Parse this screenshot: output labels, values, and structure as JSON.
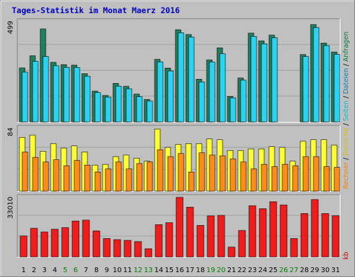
{
  "chart_data": {
    "type": "bar",
    "title": "Tages-Statistik im Monat Maerz 2016",
    "days": [
      "1",
      "2",
      "3",
      "4",
      "5",
      "6",
      "7",
      "8",
      "9",
      "10",
      "11",
      "12",
      "13",
      "14",
      "15",
      "16",
      "17",
      "18",
      "19",
      "20",
      "21",
      "22",
      "23",
      "24",
      "25",
      "26",
      "27",
      "28",
      "29",
      "30",
      "31"
    ],
    "day_colors": [
      "#000000",
      "#000000",
      "#000000",
      "#000000",
      "#008000",
      "#008000",
      "#000000",
      "#000000",
      "#000000",
      "#000000",
      "#000000",
      "#008000",
      "#008000",
      "#000000",
      "#000000",
      "#000000",
      "#000000",
      "#000000",
      "#008000",
      "#008000",
      "#000000",
      "#000000",
      "#000000",
      "#000000",
      "#000000",
      "#008000",
      "#008000",
      "#000000",
      "#000000",
      "#000000",
      "#000000"
    ],
    "panels": [
      {
        "max_label": "499",
        "ymax": 499,
        "series": [
          {
            "name": "Anfragen",
            "color": "#1f7f5f",
            "values": [
              272,
              333,
              468,
              300,
              288,
              286,
              243,
              155,
              133,
              194,
              179,
              140,
              113,
              315,
              271,
              464,
              440,
              215,
              312,
              373,
              128,
              221,
              447,
              408,
              437,
              0,
              0,
              339,
              490,
              397,
              352
            ]
          },
          {
            "name": "Dateien",
            "color": "#2ad3f2",
            "values": [
              251,
              305,
              329,
              283,
              275,
              274,
              230,
              148,
              125,
              180,
              167,
              127,
              105,
              302,
              257,
              449,
              427,
              201,
              301,
              343,
              121,
              210,
              431,
              393,
              424,
              0,
              0,
              329,
              475,
              384,
              340
            ]
          },
          {
            "name": "Seiten",
            "color": "#1aa6c9",
            "values": [
              0,
              0,
              0,
              0,
              0,
              0,
              0,
              0,
              0,
              0,
              0,
              0,
              0,
              0,
              0,
              0,
              0,
              0,
              0,
              0,
              0,
              0,
              0,
              0,
              0,
              0,
              0,
              0,
              0,
              0,
              0
            ]
          }
        ]
      },
      {
        "max_label": "84",
        "ymax": 84,
        "series": [
          {
            "name": "Besuche",
            "color": "#ffff33",
            "values": [
              70,
              73,
              52,
              62,
              56,
              59,
              51,
              34,
              35,
              45,
              47,
              43,
              39,
              81,
              57,
              61,
              62,
              62,
              68,
              67,
              53,
              53,
              55,
              55,
              58,
              57,
              39,
              65,
              67,
              67,
              60
            ]
          },
          {
            "name": "Rechner",
            "color": "#ff8c1a",
            "values": [
              51,
              44,
              38,
              41,
              33,
              40,
              34,
              25,
              29,
              38,
              29,
              36,
              38,
              54,
              45,
              49,
              25,
              50,
              47,
              46,
              42,
              38,
              29,
              35,
              32,
              35,
              33,
              45,
              45,
              32,
              31
            ]
          }
        ]
      },
      {
        "max_label": "33010",
        "ymax": 33010,
        "series": [
          {
            "name": "kb",
            "color": "#ee1c1c",
            "values": [
              11500,
              15700,
              13700,
              15200,
              16100,
              19700,
              20200,
              14300,
              10100,
              9500,
              9100,
              8400,
              4500,
              17700,
              18800,
              32700,
              27300,
              17300,
              22500,
              22800,
              5400,
              14500,
              28100,
              26500,
              30300,
              28500,
              10100,
              23800,
              31500,
              23800,
              22600
            ]
          }
        ]
      }
    ],
    "right_labels": [
      {
        "text": "Anfragen",
        "color": "#008040"
      },
      {
        "text": "Dateien",
        "color": "#0080c0"
      },
      {
        "text": "Seiten",
        "color": "#00c0e0"
      },
      {
        "text": "Besuche",
        "color": "#e0c000"
      },
      {
        "text": "Rechner",
        "color": "#ff8000"
      },
      {
        "text": "kb",
        "color": "#e00000"
      }
    ],
    "right_separator": "/",
    "grid": true,
    "legend_position": "right (rotated)"
  },
  "colors": {
    "background": "#c0c0c0",
    "frame_dark": "#7f7f7f",
    "frame_light": "#ffffff"
  }
}
